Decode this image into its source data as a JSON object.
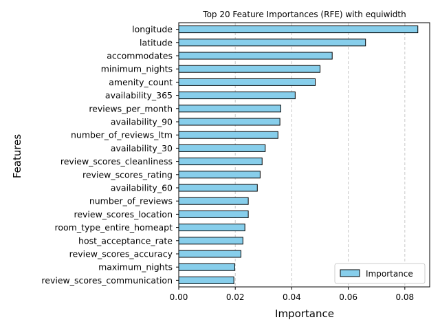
{
  "chart_data": {
    "type": "bar",
    "orientation": "horizontal",
    "title": "Top 20 Feature Importances (RFE) with equiwidth",
    "xlabel": "Importance",
    "ylabel": "Features",
    "xlim": [
      0.0,
      0.0888
    ],
    "xticks": [
      "0.00",
      "0.02",
      "0.04",
      "0.06",
      "0.08"
    ],
    "grid": "x-axis dashed",
    "legend_position": "lower-right",
    "categories": [
      "longitude",
      "latitude",
      "accommodates",
      "minimum_nights",
      "amenity_count",
      "availability_365",
      "reviews_per_month",
      "availability_90",
      "number_of_reviews_ltm",
      "availability_30",
      "review_scores_cleanliness",
      "review_scores_rating",
      "availability_60",
      "number_of_reviews",
      "review_scores_location",
      "room_type_entire_homeapt",
      "host_acceptance_rate",
      "review_scores_accuracy",
      "maximum_nights",
      "review_scores_communication"
    ],
    "series": [
      {
        "name": "Importance",
        "color": "#87CEEB",
        "values": [
          0.0846,
          0.0661,
          0.0543,
          0.05,
          0.0483,
          0.0412,
          0.0361,
          0.0358,
          0.0351,
          0.0306,
          0.0295,
          0.0288,
          0.0278,
          0.0246,
          0.0246,
          0.0234,
          0.0227,
          0.022,
          0.0198,
          0.0195
        ]
      }
    ]
  }
}
